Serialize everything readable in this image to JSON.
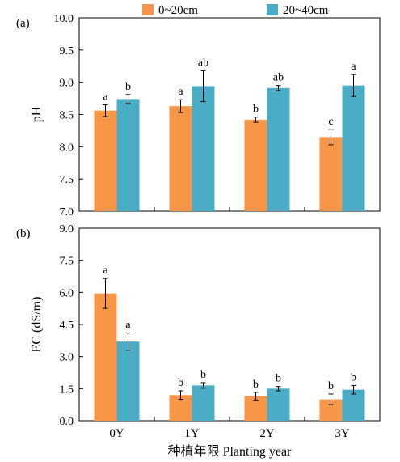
{
  "chart_data": [
    {
      "panel_label": "(a)",
      "type": "bar",
      "ylabel": "pH",
      "ylim": [
        7.0,
        10.0
      ],
      "yticks": [
        "7.0",
        "7.5",
        "8.0",
        "8.5",
        "9.0",
        "9.5",
        "10.0"
      ],
      "categories": [
        "0Y",
        "1Y",
        "2Y",
        "3Y"
      ],
      "series": [
        {
          "name": "0~20cm",
          "color": "#F79646",
          "values": [
            8.56,
            8.63,
            8.42,
            8.15
          ],
          "errors": [
            0.09,
            0.1,
            0.04,
            0.12
          ],
          "letters": [
            "a",
            "a",
            "b",
            "c"
          ]
        },
        {
          "name": "20~40cm",
          "color": "#4BACC6",
          "values": [
            8.74,
            8.94,
            8.91,
            8.95
          ],
          "errors": [
            0.07,
            0.24,
            0.04,
            0.17
          ],
          "letters": [
            "b",
            "ab",
            "ab",
            "a"
          ]
        }
      ]
    },
    {
      "panel_label": "(b)",
      "type": "bar",
      "ylabel": "EC (dS/m)",
      "ylim": [
        0.0,
        9.0
      ],
      "yticks": [
        "0.0",
        "1.5",
        "3.0",
        "4.5",
        "6.0",
        "7.5",
        "9.0"
      ],
      "categories": [
        "0Y",
        "1Y",
        "2Y",
        "3Y"
      ],
      "xlabel": "种植年限 Planting year",
      "series": [
        {
          "name": "0~20cm",
          "color": "#F79646",
          "values": [
            5.95,
            1.2,
            1.15,
            1.0
          ],
          "errors": [
            0.7,
            0.2,
            0.18,
            0.25
          ],
          "letters": [
            "a",
            "b",
            "b",
            "b"
          ]
        },
        {
          "name": "20~40cm",
          "color": "#4BACC6",
          "values": [
            3.7,
            1.65,
            1.5,
            1.45
          ],
          "errors": [
            0.4,
            0.13,
            0.1,
            0.2
          ],
          "letters": [
            "a",
            "b",
            "b",
            "b"
          ]
        }
      ]
    }
  ]
}
